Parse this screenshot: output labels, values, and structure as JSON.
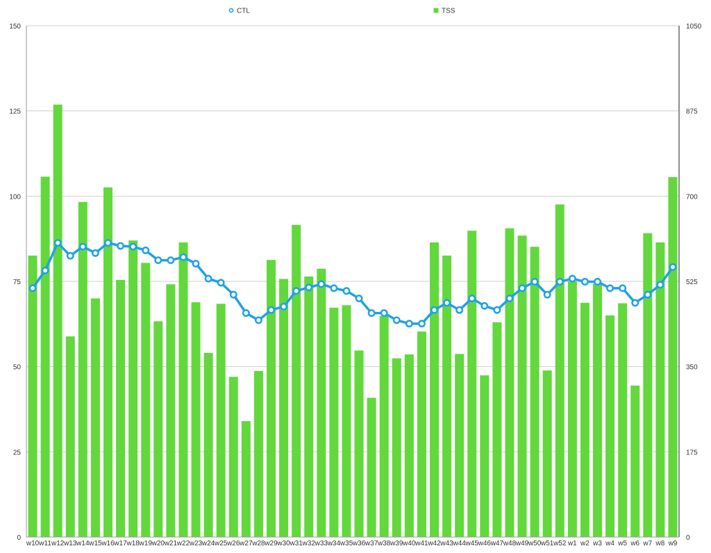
{
  "chart_data": {
    "type": "bar",
    "categories": [
      "w10",
      "w11",
      "w12",
      "w13",
      "w14",
      "w15",
      "w16",
      "w17",
      "w18",
      "w19",
      "w20",
      "w21",
      "w22",
      "w23",
      "w24",
      "w25",
      "w26",
      "w27",
      "w28",
      "w29",
      "w30",
      "w31",
      "w32",
      "w33",
      "w34",
      "w35",
      "w36",
      "w37",
      "w38",
      "w39",
      "w40",
      "w41",
      "w42",
      "w43",
      "w44",
      "w45",
      "w46",
      "w47",
      "w48",
      "w49",
      "w50",
      "w51",
      "w52",
      "w1",
      "w2",
      "w3",
      "w4",
      "w5",
      "w6",
      "w7",
      "w8",
      "w9"
    ],
    "series": [
      {
        "name": "TSS",
        "type": "bar",
        "axis": "right",
        "color": "#62d83c",
        "values": [
          578,
          740,
          888,
          412,
          688,
          490,
          718,
          528,
          609,
          563,
          443,
          519,
          605,
          482,
          378,
          479,
          329,
          238,
          341,
          569,
          530,
          641,
          535,
          551,
          471,
          476,
          383,
          286,
          454,
          367,
          375,
          422,
          605,
          578,
          376,
          629,
          332,
          441,
          634,
          619,
          596,
          342,
          683,
          525,
          481,
          520,
          455,
          480,
          311,
          624,
          605,
          739
        ]
      },
      {
        "name": "CTL",
        "type": "line",
        "axis": "left",
        "color": "#1fa1e8",
        "values": [
          73.0,
          78.2,
          86.3,
          82.5,
          85.2,
          83.3,
          86.3,
          85.4,
          85.2,
          84.1,
          81.2,
          81.2,
          82.1,
          80.2,
          75.8,
          74.6,
          71.1,
          65.7,
          63.6,
          66.6,
          67.6,
          72.2,
          73.2,
          74.2,
          73.0,
          72.2,
          70.0,
          65.7,
          65.7,
          63.6,
          62.6,
          62.6,
          66.6,
          68.7,
          66.6,
          70.0,
          67.8,
          66.6,
          70.0,
          73.0,
          74.9,
          71.1,
          74.9,
          75.8,
          74.9,
          74.9,
          73.0,
          73.0,
          68.7,
          71.1,
          74.0,
          79.2
        ]
      }
    ],
    "left_axis": {
      "ylim": [
        0,
        150
      ],
      "ticks": [
        "0",
        "25",
        "50",
        "75",
        "100",
        "125",
        "150"
      ]
    },
    "right_axis": {
      "ylim": [
        0,
        1050
      ],
      "ticks": [
        "0",
        "175",
        "350",
        "525",
        "700",
        "875",
        "1050"
      ]
    },
    "legend": {
      "placement": "top",
      "items": [
        "CTL",
        "TSS"
      ]
    },
    "grid": true
  }
}
